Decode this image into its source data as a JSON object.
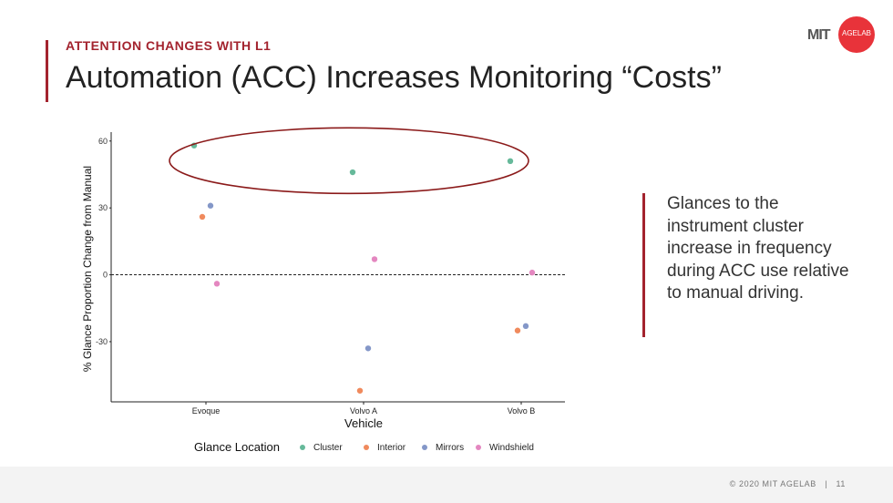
{
  "slide": {
    "kicker": "ATTENTION CHANGES WITH L1",
    "title": "Automation (ACC) Increases Monitoring “Costs”",
    "side_text": "Glances to the instrument cluster increase in frequency during ACC use relative to manual driving.",
    "footer": "© 2020 MIT AGELAB",
    "page_number": "11",
    "accent_color": "#a3232e"
  },
  "logo": {
    "mit": "MIT",
    "agelab": "AGELAB"
  },
  "chart_data": {
    "type": "scatter",
    "xlabel": "Vehicle",
    "ylabel": "% Glance Proportion Change from Manual",
    "categories": [
      "Evoque",
      "Volvo A",
      "Volvo B"
    ],
    "yticks": [
      60,
      30,
      0,
      -30
    ],
    "ylim": [
      -57,
      64
    ],
    "reference_line": 0,
    "legend_title": "Glance Location",
    "legend_position": "bottom",
    "series": [
      {
        "name": "Cluster",
        "color": "#66b99a",
        "values": [
          58,
          46,
          51
        ]
      },
      {
        "name": "Interior",
        "color": "#f08a5d",
        "values": [
          26,
          -52,
          -25
        ]
      },
      {
        "name": "Mirrors",
        "color": "#8497c8",
        "values": [
          31,
          -33,
          -23
        ]
      },
      {
        "name": "Windshield",
        "color": "#e487c0",
        "values": [
          -4,
          7,
          1
        ]
      }
    ],
    "highlight": {
      "shape": "ellipse",
      "color": "#8b1a1a",
      "series": "Cluster"
    }
  }
}
